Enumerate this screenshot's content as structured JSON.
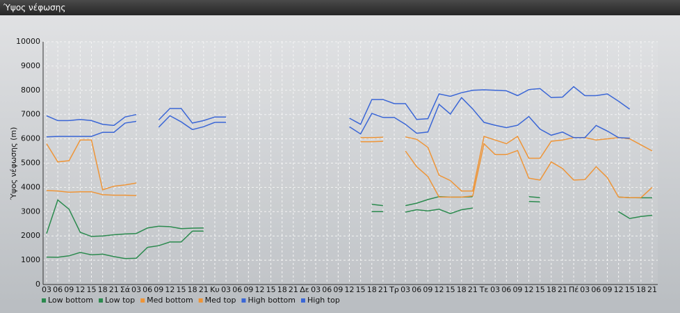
{
  "chart_data": {
    "type": "line",
    "title": "Ύψος νέφωσης",
    "y_label": "Ύψος νέφωσης (m)",
    "categories": [
      "03",
      "06",
      "09",
      "12",
      "15",
      "18",
      "21",
      "Σά",
      "03",
      "06",
      "09",
      "12",
      "15",
      "18",
      "21",
      "Κυ",
      "03",
      "06",
      "09",
      "12",
      "15",
      "18",
      "21",
      "Δε",
      "03",
      "06",
      "09",
      "12",
      "15",
      "18",
      "21",
      "Τρ",
      "03",
      "06",
      "09",
      "12",
      "15",
      "18",
      "21",
      "Τε",
      "03",
      "06",
      "09",
      "12",
      "15",
      "18",
      "21",
      "Πέ",
      "03",
      "06",
      "09",
      "12",
      "15",
      "18",
      "21"
    ],
    "series": [
      {
        "name": "Low bottom",
        "color": "#2b8a4e",
        "values": [
          1130,
          1120,
          1180,
          1320,
          1220,
          1250,
          1150,
          1070,
          1080,
          1530,
          1600,
          1750,
          1750,
          2200,
          2200,
          null,
          null,
          null,
          null,
          null,
          null,
          null,
          null,
          null,
          null,
          null,
          null,
          null,
          null,
          3000,
          3000,
          null,
          2980,
          3080,
          3030,
          3100,
          2920,
          3080,
          3150,
          null,
          null,
          null,
          null,
          3420,
          3400,
          null,
          null,
          null,
          null,
          null,
          null,
          3000,
          2720,
          2800,
          2850
        ]
      },
      {
        "name": "Low top",
        "color": "#2b8a4e",
        "values": [
          2100,
          3480,
          3100,
          2150,
          1980,
          2000,
          2050,
          2080,
          2100,
          2330,
          2400,
          2380,
          2300,
          2320,
          2330,
          null,
          null,
          null,
          null,
          null,
          null,
          null,
          null,
          null,
          null,
          null,
          null,
          null,
          null,
          3300,
          3250,
          null,
          3250,
          3350,
          3500,
          3620,
          3600,
          3600,
          3620,
          null,
          null,
          null,
          null,
          3620,
          3580,
          null,
          null,
          null,
          null,
          null,
          null,
          3600,
          3580,
          3570,
          3570
        ]
      },
      {
        "name": "Med bottom",
        "color": "#ee9538",
        "values": [
          3870,
          3850,
          3800,
          3820,
          3820,
          3700,
          3680,
          3680,
          3660,
          null,
          null,
          null,
          null,
          null,
          null,
          null,
          null,
          null,
          null,
          null,
          null,
          null,
          null,
          null,
          null,
          null,
          null,
          null,
          5880,
          5880,
          5900,
          null,
          5500,
          4850,
          4450,
          3600,
          3600,
          3600,
          3650,
          5800,
          5350,
          5350,
          5520,
          4380,
          4300,
          5050,
          4780,
          4300,
          4320,
          4850,
          4400,
          3600,
          3580,
          3580,
          4000
        ]
      },
      {
        "name": "Med top",
        "color": "#ee9538",
        "values": [
          5800,
          5050,
          5100,
          5950,
          5950,
          3900,
          4050,
          4100,
          4180,
          null,
          null,
          null,
          null,
          null,
          null,
          null,
          null,
          null,
          null,
          null,
          null,
          null,
          null,
          null,
          null,
          null,
          null,
          null,
          6050,
          6050,
          6070,
          null,
          6080,
          5980,
          5650,
          4500,
          4280,
          3850,
          3850,
          6100,
          5950,
          5800,
          6100,
          5200,
          5200,
          5900,
          5950,
          6050,
          6050,
          5950,
          6000,
          6050,
          6000,
          5750,
          5500
        ]
      },
      {
        "name": "High bottom",
        "color": "#3a66d6",
        "values": [
          6080,
          6100,
          6100,
          6100,
          6100,
          6270,
          6270,
          6650,
          6720,
          null,
          6480,
          6950,
          6700,
          6380,
          6500,
          6680,
          6680,
          null,
          null,
          null,
          null,
          null,
          null,
          null,
          null,
          null,
          null,
          6500,
          6200,
          7050,
          6880,
          6880,
          6600,
          6230,
          6280,
          7420,
          7020,
          7700,
          7230,
          6680,
          6560,
          6460,
          6560,
          6920,
          6400,
          6150,
          6280,
          6050,
          6050,
          6550,
          6320,
          6050,
          6030,
          null,
          null
        ]
      },
      {
        "name": "High top",
        "color": "#3a66d6",
        "values": [
          6950,
          6750,
          6750,
          6800,
          6750,
          6600,
          6550,
          6900,
          7000,
          null,
          6780,
          7250,
          7250,
          6650,
          6750,
          6900,
          6900,
          null,
          null,
          null,
          null,
          null,
          null,
          null,
          null,
          null,
          null,
          6850,
          6600,
          7620,
          7620,
          7450,
          7450,
          6800,
          6830,
          7850,
          7750,
          7900,
          8000,
          8020,
          8000,
          7980,
          7780,
          8030,
          8070,
          7700,
          7720,
          8150,
          7780,
          7780,
          7850,
          7550,
          7220,
          null,
          null
        ]
      }
    ],
    "ylim": [
      0,
      10000
    ],
    "yticks": [
      0,
      1000,
      2000,
      3000,
      4000,
      5000,
      6000,
      7000,
      8000,
      9000,
      10000
    ],
    "grid": true
  }
}
